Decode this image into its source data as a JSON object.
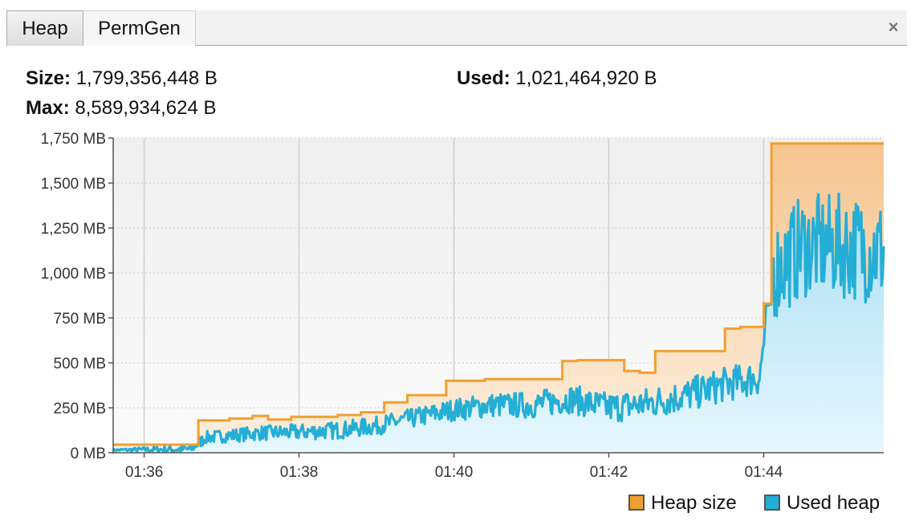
{
  "tabs": [
    {
      "label": "Heap",
      "selected": true
    },
    {
      "label": "PermGen",
      "selected": false
    }
  ],
  "close_icon": "close-icon",
  "close_glyph": "×",
  "stats": {
    "size_label": "Size:",
    "size_value": "1,799,356,448 B",
    "max_label": "Max:",
    "max_value": "8,589,934,624 B",
    "used_label": "Used:",
    "used_value": "1,021,464,920 B"
  },
  "chart_data": {
    "type": "area",
    "ylim": [
      0,
      1750
    ],
    "y_ticks": [
      0,
      250,
      500,
      750,
      1000,
      1250,
      1500,
      1750
    ],
    "y_tick_labels": [
      "0 MB",
      "250 MB",
      "500 MB",
      "750 MB",
      "1,000 MB",
      "1,250 MB",
      "1,500 MB",
      "1,750 MB"
    ],
    "xlim": [
      95.6,
      105.55
    ],
    "x_ticks": [
      96,
      98,
      100,
      102,
      104
    ],
    "x_tick_labels": [
      "01:36",
      "01:38",
      "01:40",
      "01:42",
      "01:44"
    ],
    "grid": true,
    "legend_position": "bottom-right",
    "colors": {
      "heap_size": "#f0a030",
      "used_heap": "#24aed6"
    },
    "series": [
      {
        "name": "Heap size",
        "step": true,
        "points": [
          [
            95.6,
            45
          ],
          [
            96.7,
            45
          ],
          [
            96.7,
            180
          ],
          [
            97.1,
            180
          ],
          [
            97.1,
            190
          ],
          [
            97.4,
            190
          ],
          [
            97.4,
            205
          ],
          [
            97.6,
            205
          ],
          [
            97.6,
            185
          ],
          [
            97.9,
            185
          ],
          [
            97.9,
            200
          ],
          [
            98.5,
            200
          ],
          [
            98.5,
            210
          ],
          [
            98.8,
            210
          ],
          [
            98.8,
            225
          ],
          [
            99.1,
            225
          ],
          [
            99.1,
            280
          ],
          [
            99.4,
            280
          ],
          [
            99.4,
            320
          ],
          [
            99.9,
            320
          ],
          [
            99.9,
            400
          ],
          [
            100.4,
            400
          ],
          [
            100.4,
            410
          ],
          [
            101.4,
            410
          ],
          [
            101.4,
            510
          ],
          [
            101.6,
            510
          ],
          [
            101.6,
            515
          ],
          [
            102.2,
            515
          ],
          [
            102.2,
            455
          ],
          [
            102.4,
            455
          ],
          [
            102.4,
            445
          ],
          [
            102.6,
            445
          ],
          [
            102.6,
            565
          ],
          [
            103.5,
            565
          ],
          [
            103.5,
            690
          ],
          [
            103.7,
            690
          ],
          [
            103.7,
            700
          ],
          [
            104.0,
            700
          ],
          [
            104.0,
            830
          ],
          [
            104.1,
            830
          ],
          [
            104.1,
            1720
          ],
          [
            105.55,
            1720
          ]
        ]
      },
      {
        "name": "Used heap",
        "step": false,
        "seed": 7,
        "envelope": [
          [
            95.6,
            15
          ],
          [
            96.6,
            20
          ],
          [
            96.8,
            85
          ],
          [
            97.5,
            110
          ],
          [
            98.0,
            115
          ],
          [
            98.5,
            125
          ],
          [
            99.0,
            150
          ],
          [
            99.5,
            195
          ],
          [
            100.0,
            240
          ],
          [
            100.5,
            265
          ],
          [
            101.0,
            265
          ],
          [
            101.5,
            300
          ],
          [
            102.0,
            250
          ],
          [
            102.5,
            275
          ],
          [
            103.0,
            320
          ],
          [
            103.5,
            380
          ],
          [
            103.95,
            420
          ],
          [
            104.1,
            1000
          ],
          [
            104.5,
            1150
          ],
          [
            105.0,
            1150
          ],
          [
            105.55,
            1120
          ]
        ],
        "amplitude": [
          [
            95.6,
            5
          ],
          [
            96.8,
            35
          ],
          [
            98.0,
            45
          ],
          [
            99.5,
            55
          ],
          [
            101.0,
            75
          ],
          [
            102.5,
            90
          ],
          [
            103.95,
            100
          ],
          [
            104.1,
            280
          ],
          [
            105.55,
            300
          ]
        ]
      }
    ]
  },
  "legend": [
    {
      "label": "Heap size",
      "color": "#f0a030"
    },
    {
      "label": "Used heap",
      "color": "#24aed6"
    }
  ]
}
